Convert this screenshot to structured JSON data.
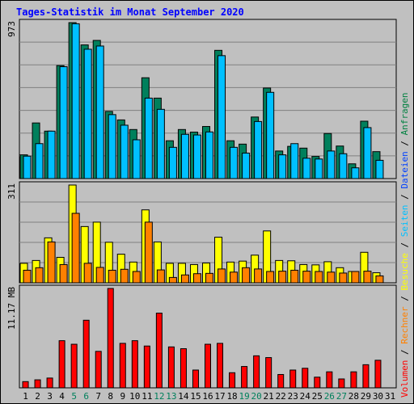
{
  "chart_data": [
    {
      "type": "bar",
      "title": "Tages-Statistik im Monat September 2020",
      "ymax_label": "973",
      "categories": [
        "1",
        "2",
        "3",
        "4",
        "5",
        "6",
        "7",
        "8",
        "9",
        "10",
        "11",
        "12",
        "13",
        "14",
        "15",
        "16",
        "17",
        "18",
        "19",
        "20",
        "21",
        "22",
        "23",
        "24",
        "25",
        "26",
        "27",
        "28",
        "29",
        "30",
        "31"
      ],
      "weekend_days": [
        "5",
        "6",
        "12",
        "13",
        "19",
        "20",
        "26",
        "27"
      ],
      "ylim": [
        0,
        973
      ],
      "series": [
        {
          "name": "Anfragen",
          "color": "#00805c",
          "values": [
            148,
            347,
            296,
            705,
            973,
            834,
            862,
            419,
            366,
            306,
            629,
            502,
            236,
            306,
            290,
            325,
            800,
            236,
            215,
            384,
            565,
            172,
            201,
            190,
            138,
            281,
            203,
            92,
            358,
            168,
            0
          ]
        },
        {
          "name": "Dateien",
          "color": "#00c0ff",
          "values": [
            140,
            218,
            296,
            698,
            966,
            807,
            827,
            399,
            333,
            242,
            502,
            432,
            195,
            276,
            272,
            291,
            767,
            195,
            159,
            356,
            538,
            148,
            218,
            127,
            122,
            172,
            155,
            67,
            318,
            114,
            0
          ]
        }
      ]
    },
    {
      "type": "bar",
      "ymax_label": "311",
      "ylim": [
        0,
        311
      ],
      "series": [
        {
          "name": "Seiten",
          "color": "#ffff00",
          "values": [
            62,
            71,
            143,
            81,
            311,
            179,
            193,
            129,
            91,
            66,
            232,
            130,
            62,
            62,
            58,
            63,
            145,
            66,
            69,
            88,
            165,
            71,
            70,
            58,
            57,
            67,
            48,
            36,
            97,
            32,
            0
          ]
        },
        {
          "name": "Besuche",
          "color": "#ff8000",
          "values": [
            40,
            48,
            130,
            58,
            221,
            62,
            49,
            40,
            43,
            36,
            193,
            41,
            17,
            25,
            29,
            30,
            44,
            34,
            48,
            44,
            36,
            37,
            40,
            37,
            36,
            34,
            31,
            36,
            37,
            22,
            0
          ]
        }
      ]
    },
    {
      "type": "bar",
      "ymax_label": "11.17 MB",
      "ylim": [
        0,
        11.17
      ],
      "series": [
        {
          "name": "Volumen",
          "color": "#ff0000",
          "values": [
            0.7,
            0.9,
            1.1,
            5.3,
            4.9,
            7.6,
            4.1,
            11.17,
            5.0,
            5.3,
            4.7,
            8.4,
            4.6,
            4.4,
            2.0,
            4.9,
            5.0,
            1.7,
            2.4,
            3.6,
            3.4,
            1.5,
            2.0,
            2.2,
            1.2,
            1.8,
            1.0,
            1.8,
            2.6,
            3.1,
            0
          ]
        }
      ]
    }
  ],
  "legend": [
    {
      "label": "Volumen",
      "color": "#ff0000"
    },
    {
      "label": "Rechner",
      "color": "#ff8000"
    },
    {
      "label": "Besuche",
      "color": "#ffff00"
    },
    {
      "label": "Seiten",
      "color": "#00c0ff"
    },
    {
      "label": "Dateien",
      "color": "#0040ff"
    },
    {
      "label": "Anfragen",
      "color": "#008040"
    }
  ],
  "legend_separator": " / ",
  "colors": {
    "background": "#c0c0c0",
    "grid": "#808080",
    "title": "#0000ff",
    "weekday_label": "#000000",
    "weekend_label": "#00805c"
  }
}
